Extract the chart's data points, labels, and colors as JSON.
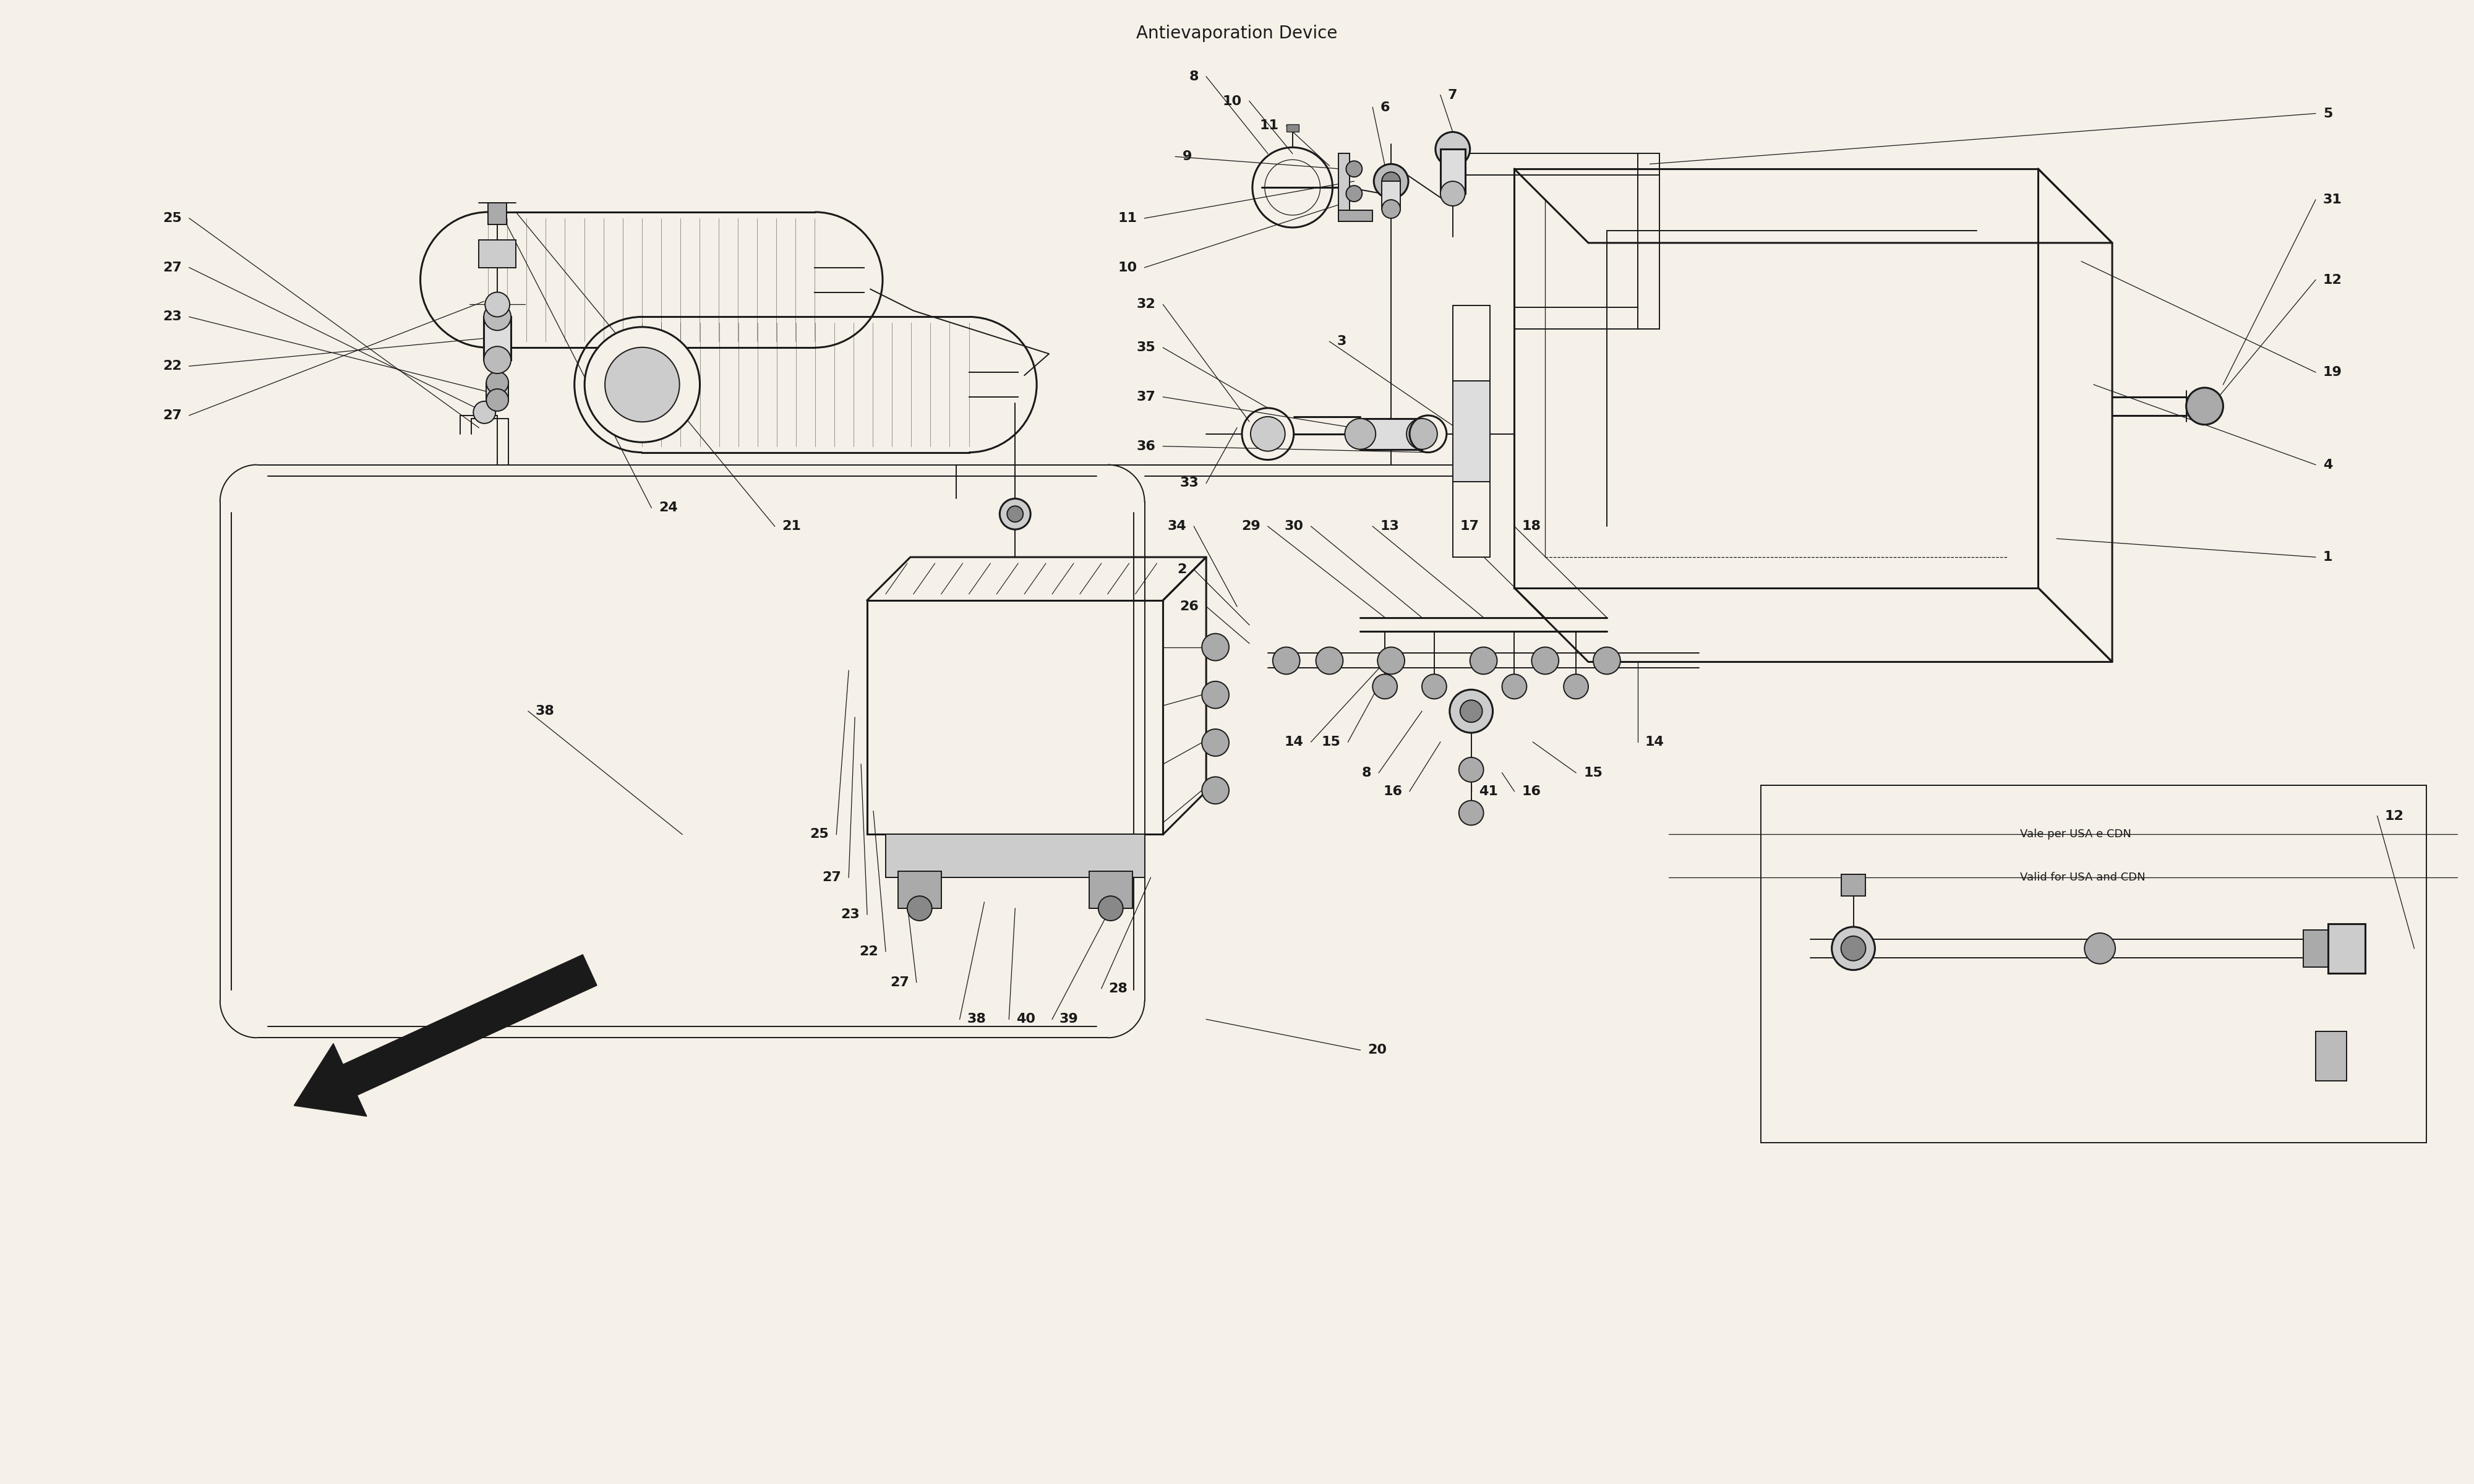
{
  "title": "Antievaporation Device",
  "bg_color": "#f5f0e8",
  "line_color": "#1a1a1a",
  "title_fontsize": 22,
  "label_fontsize": 16,
  "fig_width": 40,
  "fig_height": 24
}
